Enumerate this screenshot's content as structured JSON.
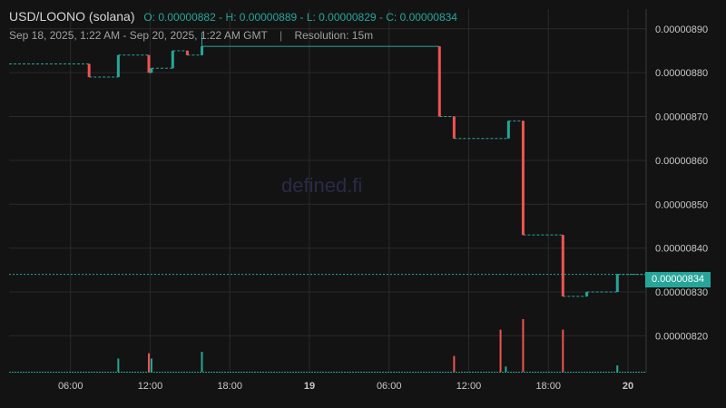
{
  "header": {
    "pair": "USD/LOONO (solana)",
    "ohlc": "O: 0.00000882 - H: 0.00000889 - L: 0.00000829 - C: 0.00000834",
    "range": "Sep 18, 2025, 1:22 AM - Sep 20, 2025, 1:22 AM GMT",
    "separator": "|",
    "resolution": "Resolution: 15m"
  },
  "watermark": "defined.fi",
  "last_price": "0.00000834",
  "colors": {
    "up": "#26a69a",
    "down": "#ef5350",
    "background": "#131313",
    "grid": "#2a2a2a",
    "axis_text": "#c8c8c8"
  },
  "chart_data": {
    "type": "candlestick",
    "title": "USD/LOONO (solana)",
    "x_axis": {
      "unit": "hours since Sep 18, 2025 00:00 GMT",
      "range": [
        1.37,
        49.37
      ],
      "ticks": [
        {
          "value": 6,
          "label": "06:00",
          "bold": false
        },
        {
          "value": 12,
          "label": "12:00",
          "bold": false
        },
        {
          "value": 18,
          "label": "18:00",
          "bold": false
        },
        {
          "value": 24,
          "label": "19",
          "bold": true
        },
        {
          "value": 30,
          "label": "06:00",
          "bold": false
        },
        {
          "value": 36,
          "label": "12:00",
          "bold": false
        },
        {
          "value": 42,
          "label": "18:00",
          "bold": false
        },
        {
          "value": 48,
          "label": "20",
          "bold": true
        }
      ]
    },
    "y_axis": {
      "position": "right",
      "range": [
        8.116e-06,
        8.945e-06
      ],
      "ticks": [
        "0.00000820",
        "0.00000830",
        "0.00000840",
        "0.00000850",
        "0.00000860",
        "0.00000870",
        "0.00000880",
        "0.00000890"
      ],
      "tick_values": [
        8.2e-06,
        8.3e-06,
        8.4e-06,
        8.5e-06,
        8.6e-06,
        8.7e-06,
        8.8e-06,
        8.9e-06
      ]
    },
    "grid": true,
    "last_price": 8.34e-06,
    "candles": [
      {
        "t": 7.4,
        "o": 8.82e-06,
        "h": 8.82e-06,
        "l": 8.79e-06,
        "c": 8.79e-06
      },
      {
        "t": 9.6,
        "o": 8.79e-06,
        "h": 8.84e-06,
        "l": 8.79e-06,
        "c": 8.84e-06
      },
      {
        "t": 11.9,
        "o": 8.84e-06,
        "h": 8.84e-06,
        "l": 8.8e-06,
        "c": 8.8e-06
      },
      {
        "t": 12.1,
        "o": 8.8e-06,
        "h": 8.81e-06,
        "l": 8.8e-06,
        "c": 8.81e-06
      },
      {
        "t": 13.7,
        "o": 8.81e-06,
        "h": 8.85e-06,
        "l": 8.81e-06,
        "c": 8.85e-06
      },
      {
        "t": 14.8,
        "o": 8.85e-06,
        "h": 8.85e-06,
        "l": 8.84e-06,
        "c": 8.84e-06
      },
      {
        "t": 15.9,
        "o": 8.84e-06,
        "h": 8.89e-06,
        "l": 8.84e-06,
        "c": 8.86e-06
      },
      {
        "t": 33.8,
        "o": 8.86e-06,
        "h": 8.86e-06,
        "l": 8.7e-06,
        "c": 8.7e-06
      },
      {
        "t": 34.9,
        "o": 8.7e-06,
        "h": 8.7e-06,
        "l": 8.65e-06,
        "c": 8.65e-06
      },
      {
        "t": 39.0,
        "o": 8.65e-06,
        "h": 8.69e-06,
        "l": 8.65e-06,
        "c": 8.69e-06
      },
      {
        "t": 40.1,
        "o": 8.69e-06,
        "h": 8.69e-06,
        "l": 8.43e-06,
        "c": 8.43e-06
      },
      {
        "t": 43.1,
        "o": 8.43e-06,
        "h": 8.43e-06,
        "l": 8.29e-06,
        "c": 8.29e-06
      },
      {
        "t": 44.9,
        "o": 8.29e-06,
        "h": 8.3e-06,
        "l": 8.29e-06,
        "c": 8.3e-06
      },
      {
        "t": 47.2,
        "o": 8.3e-06,
        "h": 8.34e-06,
        "l": 8.3e-06,
        "c": 8.34e-06
      }
    ],
    "end_time": 49.37,
    "volume_bars": [
      {
        "t": 9.6,
        "v": 0.25,
        "dir": "up"
      },
      {
        "t": 11.9,
        "v": 0.35,
        "dir": "down"
      },
      {
        "t": 12.1,
        "v": 0.25,
        "dir": "up"
      },
      {
        "t": 15.9,
        "v": 0.38,
        "dir": "up"
      },
      {
        "t": 34.9,
        "v": 0.3,
        "dir": "down"
      },
      {
        "t": 38.4,
        "v": 0.8,
        "dir": "down"
      },
      {
        "t": 38.8,
        "v": 0.1,
        "dir": "up"
      },
      {
        "t": 40.1,
        "v": 1.0,
        "dir": "down"
      },
      {
        "t": 43.1,
        "v": 0.8,
        "dir": "down"
      },
      {
        "t": 47.2,
        "v": 0.12,
        "dir": "up"
      }
    ]
  }
}
